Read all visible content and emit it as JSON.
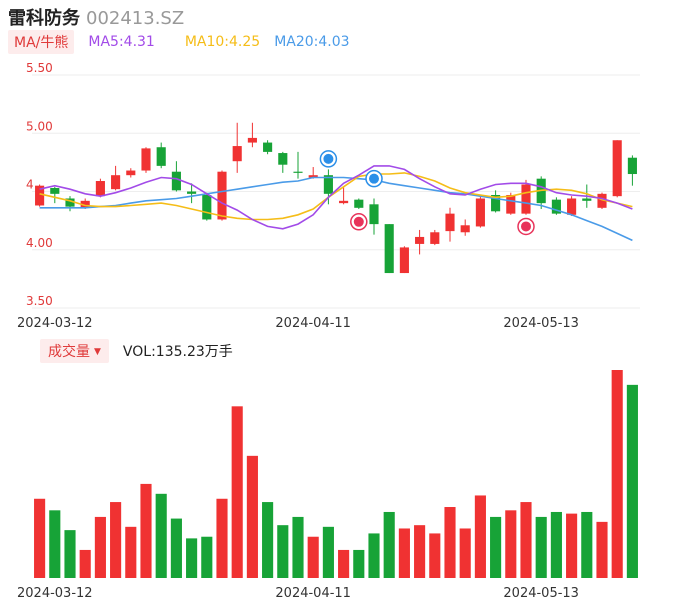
{
  "header": {
    "name": "雷科防务",
    "code": "002413.SZ"
  },
  "ma": {
    "tag": "MA/牛熊",
    "ma5": "MA5:4.31",
    "ma10": "MA10:4.25",
    "ma20": "MA20:4.03",
    "ma5_color": "#a24be8",
    "ma10_color": "#f5bd18",
    "ma20_color": "#4a9be8"
  },
  "volume": {
    "tag": "成交量",
    "label": "VOL:135.23万手"
  },
  "colors": {
    "up": "#f03232",
    "down": "#17a337",
    "axis_label": "#e03a3a"
  },
  "chart_data": {
    "type": "candlestick",
    "y_ticks": [
      "5.50",
      "5.00",
      "4",
      "4.00",
      "3.50"
    ],
    "x_ticks": [
      "2024-03-12",
      "2024-04-11",
      "2024-05-13"
    ],
    "ylim": [
      3.5,
      5.5
    ],
    "candles": [
      {
        "o": 4.38,
        "c": 4.55,
        "h": 4.56,
        "l": 4.37
      },
      {
        "o": 4.53,
        "c": 4.48,
        "h": 4.54,
        "l": 4.4
      },
      {
        "o": 4.44,
        "c": 4.37,
        "h": 4.46,
        "l": 4.33
      },
      {
        "o": 4.36,
        "c": 4.42,
        "h": 4.44,
        "l": 4.35
      },
      {
        "o": 4.46,
        "c": 4.59,
        "h": 4.61,
        "l": 4.45
      },
      {
        "o": 4.52,
        "c": 4.64,
        "h": 4.72,
        "l": 4.51
      },
      {
        "o": 4.64,
        "c": 4.68,
        "h": 4.7,
        "l": 4.62
      },
      {
        "o": 4.68,
        "c": 4.87,
        "h": 4.88,
        "l": 4.66
      },
      {
        "o": 4.88,
        "c": 4.72,
        "h": 4.92,
        "l": 4.7
      },
      {
        "o": 4.67,
        "c": 4.51,
        "h": 4.76,
        "l": 4.5
      },
      {
        "o": 4.5,
        "c": 4.48,
        "h": 4.57,
        "l": 4.4
      },
      {
        "o": 4.47,
        "c": 4.26,
        "h": 4.49,
        "l": 4.25
      },
      {
        "o": 4.26,
        "c": 4.67,
        "h": 4.68,
        "l": 4.25
      },
      {
        "o": 4.76,
        "c": 4.89,
        "h": 5.09,
        "l": 4.66
      },
      {
        "o": 4.92,
        "c": 4.96,
        "h": 5.09,
        "l": 4.88
      },
      {
        "o": 4.92,
        "c": 4.84,
        "h": 4.94,
        "l": 4.82
      },
      {
        "o": 4.83,
        "c": 4.73,
        "h": 4.84,
        "l": 4.66
      },
      {
        "o": 4.67,
        "c": 4.66,
        "h": 4.84,
        "l": 4.61
      },
      {
        "o": 4.62,
        "c": 4.64,
        "h": 4.71,
        "l": 4.61
      },
      {
        "o": 4.64,
        "c": 4.48,
        "h": 4.69,
        "l": 4.39
      },
      {
        "o": 4.4,
        "c": 4.42,
        "h": 4.54,
        "l": 4.39
      },
      {
        "o": 4.43,
        "c": 4.36,
        "h": 4.44,
        "l": 4.35
      },
      {
        "o": 4.39,
        "c": 4.22,
        "h": 4.44,
        "l": 4.13
      },
      {
        "o": 4.22,
        "c": 3.8,
        "h": 4.22,
        "l": 3.8
      },
      {
        "o": 3.8,
        "c": 4.02,
        "h": 4.03,
        "l": 3.8
      },
      {
        "o": 4.05,
        "c": 4.11,
        "h": 4.17,
        "l": 3.96
      },
      {
        "o": 4.05,
        "c": 4.15,
        "h": 4.17,
        "l": 4.04
      },
      {
        "o": 4.16,
        "c": 4.31,
        "h": 4.36,
        "l": 4.07
      },
      {
        "o": 4.15,
        "c": 4.21,
        "h": 4.26,
        "l": 4.12
      },
      {
        "o": 4.2,
        "c": 4.44,
        "h": 4.47,
        "l": 4.19
      },
      {
        "o": 4.47,
        "c": 4.33,
        "h": 4.51,
        "l": 4.32
      },
      {
        "o": 4.31,
        "c": 4.47,
        "h": 4.49,
        "l": 4.3
      },
      {
        "o": 4.31,
        "c": 4.56,
        "h": 4.6,
        "l": 4.3
      },
      {
        "o": 4.61,
        "c": 4.4,
        "h": 4.63,
        "l": 4.35
      },
      {
        "o": 4.43,
        "c": 4.31,
        "h": 4.45,
        "l": 4.3
      },
      {
        "o": 4.3,
        "c": 4.44,
        "h": 4.46,
        "l": 4.29
      },
      {
        "o": 4.44,
        "c": 4.42,
        "h": 4.56,
        "l": 4.36
      },
      {
        "o": 4.36,
        "c": 4.48,
        "h": 4.49,
        "l": 4.35
      },
      {
        "o": 4.46,
        "c": 4.94,
        "h": 4.94,
        "l": 4.45
      },
      {
        "o": 4.79,
        "c": 4.65,
        "h": 4.81,
        "l": 4.55
      }
    ],
    "volume": [
      48,
      41,
      29,
      17,
      37,
      46,
      31,
      57,
      51,
      36,
      24,
      25,
      48,
      104,
      74,
      46,
      32,
      37,
      25,
      31,
      17,
      17,
      27,
      40,
      30,
      32,
      27,
      43,
      30,
      50,
      37,
      41,
      46,
      37,
      40,
      39,
      40,
      34,
      126,
      117
    ],
    "ma5": [
      4.52,
      4.55,
      4.52,
      4.48,
      4.46,
      4.49,
      4.53,
      4.58,
      4.62,
      4.61,
      4.56,
      4.48,
      4.4,
      4.34,
      4.26,
      4.2,
      4.18,
      4.22,
      4.3,
      4.45,
      4.57,
      4.64,
      4.72,
      4.72,
      4.69,
      4.61,
      4.54,
      4.48,
      4.47,
      4.52,
      4.56,
      4.57,
      4.57,
      4.54,
      4.49,
      4.47,
      4.46,
      4.44,
      4.4,
      4.35
    ],
    "ma10": [
      4.48,
      4.45,
      4.42,
      4.38,
      4.37,
      4.37,
      4.38,
      4.39,
      4.4,
      4.38,
      4.35,
      4.32,
      4.29,
      4.27,
      4.26,
      4.26,
      4.27,
      4.3,
      4.35,
      4.45,
      4.54,
      4.63,
      4.65,
      4.65,
      4.66,
      4.63,
      4.59,
      4.53,
      4.49,
      4.47,
      4.45,
      4.46,
      4.49,
      4.51,
      4.52,
      4.51,
      4.48,
      4.43,
      4.4,
      4.37
    ],
    "ma20": [
      4.36,
      4.36,
      4.36,
      4.36,
      4.37,
      4.38,
      4.4,
      4.42,
      4.43,
      4.44,
      4.46,
      4.48,
      4.5,
      4.52,
      4.54,
      4.56,
      4.58,
      4.59,
      4.62,
      4.62,
      4.62,
      4.61,
      4.6,
      4.57,
      4.55,
      4.53,
      4.51,
      4.49,
      4.48,
      4.46,
      4.44,
      4.42,
      4.4,
      4.38,
      4.34,
      4.3,
      4.25,
      4.2,
      4.14,
      4.08
    ]
  }
}
